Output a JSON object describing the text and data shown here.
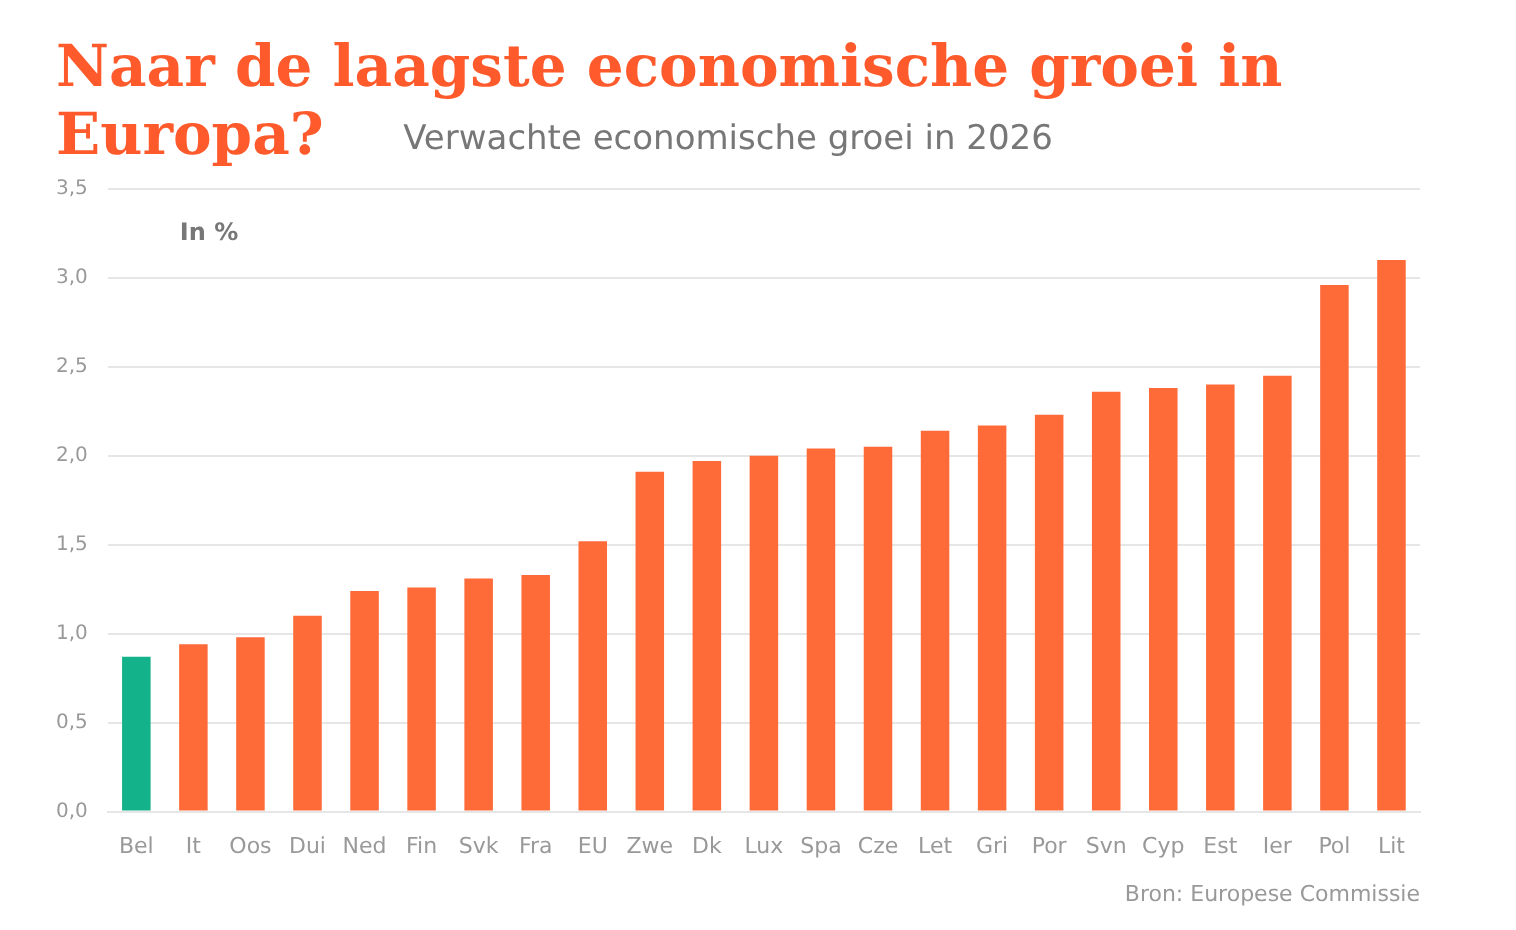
{
  "chart_data": {
    "type": "bar",
    "title": "Naar de laagste economische groei in Europa?",
    "subtitle": "Verwachte economische groei in 2026",
    "categories": [
      "Bel",
      "It",
      "Oos",
      "Dui",
      "Ned",
      "Fin",
      "Svk",
      "Fra",
      "EU",
      "Zwe",
      "Dk",
      "Lux",
      "Spa",
      "Cze",
      "Let",
      "Gri",
      "Por",
      "Svn",
      "Cyp",
      "Est",
      "Ier",
      "Pol",
      "Lit"
    ],
    "values": [
      0.87,
      0.94,
      0.98,
      1.1,
      1.24,
      1.26,
      1.31,
      1.33,
      1.52,
      1.91,
      1.97,
      2.0,
      2.04,
      2.05,
      2.14,
      2.17,
      2.23,
      2.36,
      2.38,
      2.4,
      2.45,
      2.96,
      3.1
    ],
    "colors": [
      "#13b28a",
      "#ff6a39",
      "#ff6a39",
      "#ff6a39",
      "#ff6a39",
      "#ff6a39",
      "#ff6a39",
      "#ff6a39",
      "#ff6a39",
      "#ff6a39",
      "#ff6a39",
      "#ff6a39",
      "#ff6a39",
      "#ff6a39",
      "#ff6a39",
      "#ff6a39",
      "#ff6a39",
      "#ff6a39",
      "#ff6a39",
      "#ff6a39",
      "#ff6a39",
      "#ff6a39",
      "#ff6a39"
    ],
    "ylim": [
      0,
      3.5
    ],
    "yticks": [
      {
        "value": 0,
        "label": "0,0"
      },
      {
        "value": 0.5,
        "label": "0,5"
      },
      {
        "value": 1,
        "label": "1,0"
      },
      {
        "value": 1.5,
        "label": "1,5"
      },
      {
        "value": 2,
        "label": "2,0"
      },
      {
        "value": 2.5,
        "label": "2,5"
      },
      {
        "value": 3,
        "label": "3,0"
      },
      {
        "value": 3.5,
        "label": "3,5"
      }
    ],
    "grid": "y",
    "legend": false,
    "annotations": [
      "In %",
      "Bron: Europese Commissie"
    ]
  }
}
